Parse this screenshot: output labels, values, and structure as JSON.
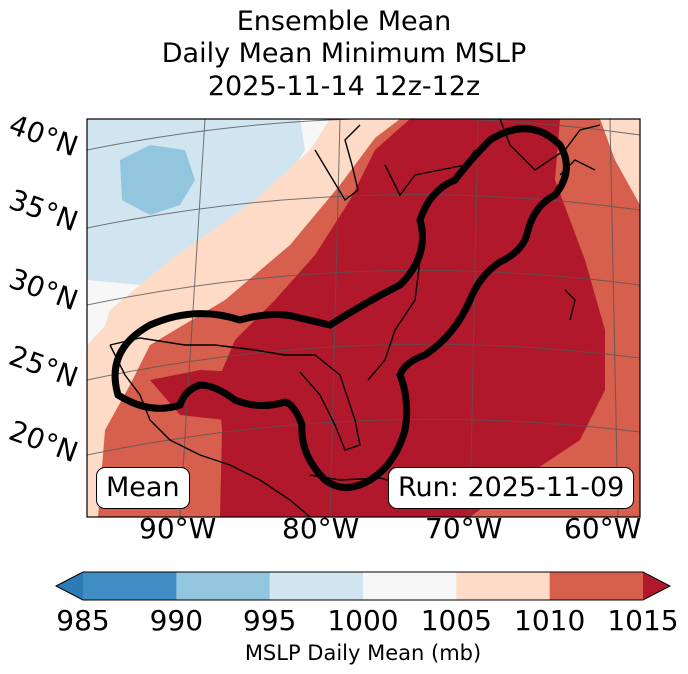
{
  "title": {
    "line1": "Ensemble Mean",
    "line2": "Daily Mean Minimum MSLP",
    "line3": "2025-11-14 12z-12z"
  },
  "labels": {
    "mean": "Mean",
    "run": "Run: 2025-11-09"
  },
  "lat_labels": [
    "40°N",
    "35°N",
    "30°N",
    "25°N",
    "20°N"
  ],
  "lon_labels": [
    "90°W",
    "80°W",
    "70°W",
    "60°W"
  ],
  "colorbar": {
    "ticks": [
      "985",
      "990",
      "995",
      "1000",
      "1005",
      "1010",
      "1015"
    ],
    "label": "MSLP Daily Mean (mb)",
    "colors": [
      "#2c7bb6",
      "#3f8dc4",
      "#92c5de",
      "#d1e5f0",
      "#f7f7f7",
      "#fddbc7",
      "#d6604d",
      "#b2182b"
    ]
  },
  "chart_data": {
    "type": "heatmap",
    "title": "Ensemble Mean Daily Mean Minimum MSLP 2025-11-14 12z-12z",
    "variable": "MSLP Daily Mean (mb)",
    "levels": [
      985,
      990,
      995,
      1000,
      1005,
      1010,
      1015
    ],
    "extend": "both",
    "lon_range": [
      -95,
      -58
    ],
    "lat_range": [
      15,
      41
    ],
    "contour_level_mb": 1015
  }
}
